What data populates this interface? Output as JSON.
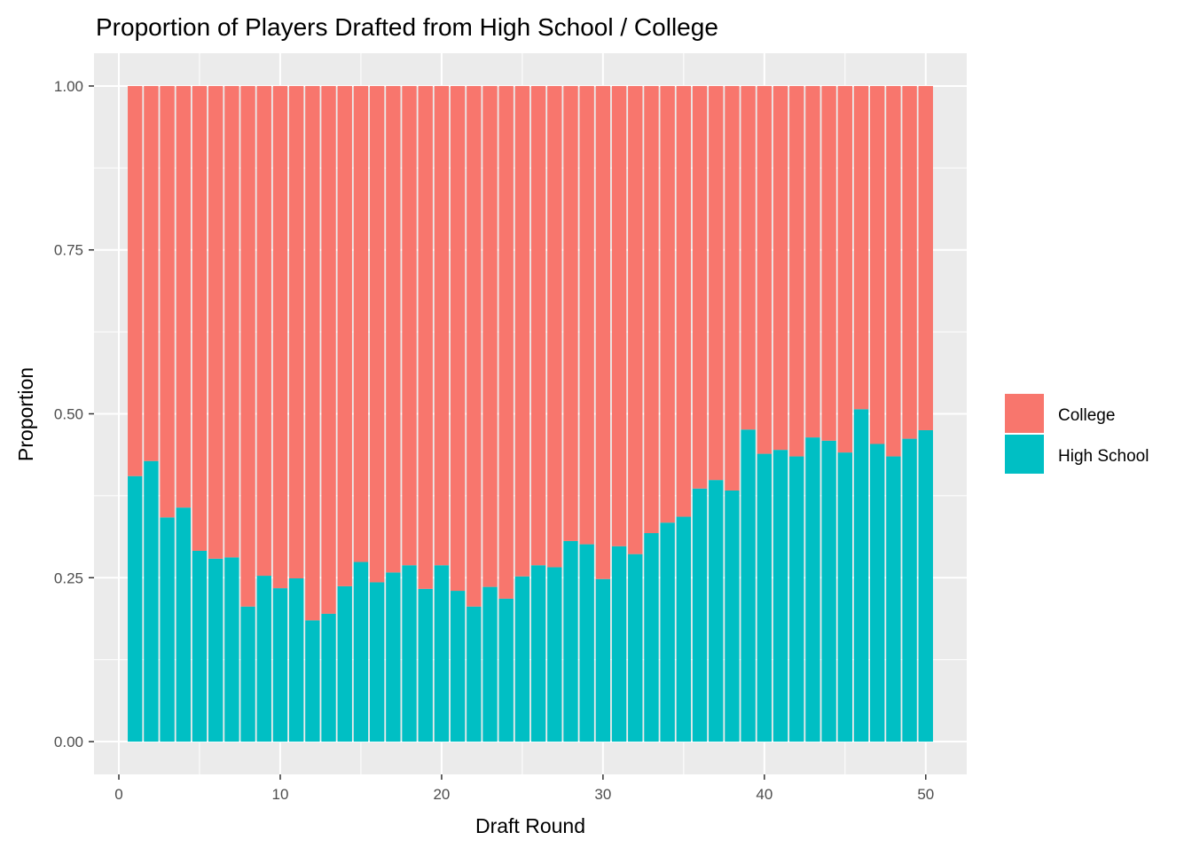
{
  "chart_data": {
    "type": "bar",
    "stacked": true,
    "normalized": true,
    "title": "Proportion of Players Drafted from High School / College",
    "xlabel": "Draft Round",
    "ylabel": "Proportion",
    "xlim": [
      0,
      50
    ],
    "ylim": [
      0,
      1
    ],
    "x_ticks": [
      0,
      10,
      20,
      30,
      40,
      50
    ],
    "x_tick_labels": [
      "0",
      "10",
      "20",
      "30",
      "40",
      "50"
    ],
    "y_ticks": [
      0,
      0.25,
      0.5,
      0.75,
      1
    ],
    "y_tick_labels": [
      "0.00",
      "0.25",
      "0.50",
      "0.75",
      "1.00"
    ],
    "grid": true,
    "legend_position": "right",
    "x": [
      1,
      2,
      3,
      4,
      5,
      6,
      7,
      8,
      9,
      10,
      11,
      12,
      13,
      14,
      15,
      16,
      17,
      18,
      19,
      20,
      21,
      22,
      23,
      24,
      25,
      26,
      27,
      28,
      29,
      30,
      31,
      32,
      33,
      34,
      35,
      36,
      37,
      38,
      39,
      40,
      41,
      42,
      43,
      44,
      45,
      46,
      47,
      48,
      49,
      50
    ],
    "series": [
      {
        "name": "College",
        "color": "#F8766D",
        "values": [
          0.595,
          0.572,
          0.658,
          0.643,
          0.709,
          0.721,
          0.719,
          0.794,
          0.747,
          0.766,
          0.751,
          0.815,
          0.805,
          0.763,
          0.726,
          0.757,
          0.742,
          0.731,
          0.767,
          0.731,
          0.77,
          0.794,
          0.764,
          0.782,
          0.748,
          0.731,
          0.734,
          0.694,
          0.699,
          0.752,
          0.702,
          0.714,
          0.682,
          0.666,
          0.657,
          0.614,
          0.601,
          0.617,
          0.524,
          0.561,
          0.555,
          0.565,
          0.536,
          0.541,
          0.559,
          0.493,
          0.546,
          0.565,
          0.538,
          0.525
        ]
      },
      {
        "name": "High School",
        "color": "#00BFC4",
        "values": [
          0.405,
          0.428,
          0.342,
          0.357,
          0.291,
          0.279,
          0.281,
          0.206,
          0.253,
          0.234,
          0.249,
          0.185,
          0.195,
          0.237,
          0.274,
          0.243,
          0.258,
          0.269,
          0.233,
          0.269,
          0.23,
          0.206,
          0.236,
          0.218,
          0.252,
          0.269,
          0.266,
          0.306,
          0.301,
          0.248,
          0.298,
          0.286,
          0.318,
          0.334,
          0.343,
          0.386,
          0.399,
          0.383,
          0.476,
          0.439,
          0.445,
          0.435,
          0.464,
          0.459,
          0.441,
          0.507,
          0.454,
          0.435,
          0.462,
          0.475
        ]
      }
    ]
  }
}
